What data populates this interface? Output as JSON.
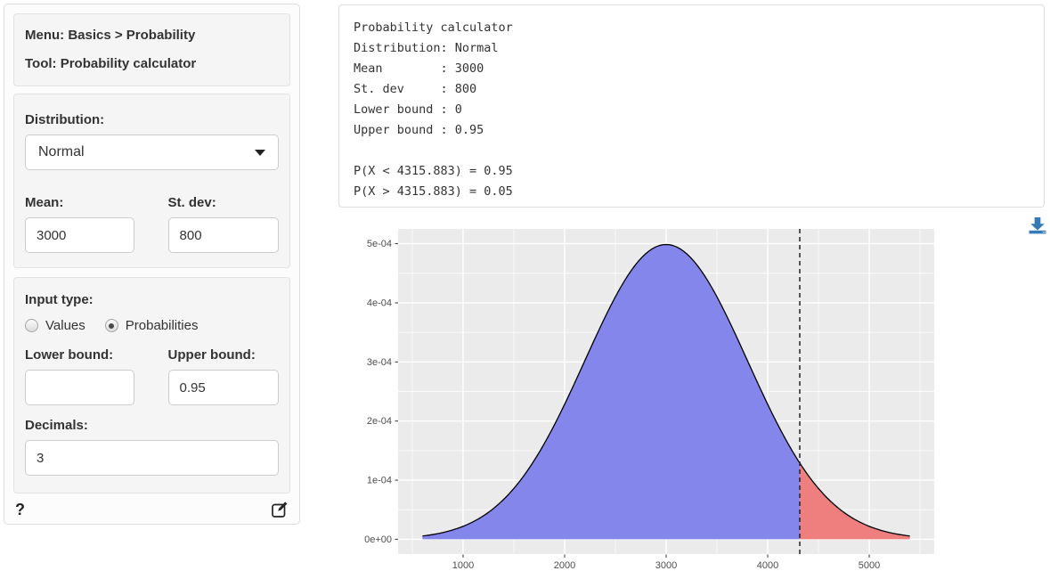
{
  "sidebar": {
    "menu_line": "Menu: Basics > Probability",
    "tool_line": "Tool: Probability calculator",
    "distribution_label": "Distribution:",
    "distribution_value": "Normal",
    "mean_label": "Mean:",
    "mean_value": "3000",
    "stdev_label": "St. dev:",
    "stdev_value": "800",
    "input_type_label": "Input type:",
    "radio_values_label": "Values",
    "radio_probabilities_label": "Probabilities",
    "input_type_selected": "Probabilities",
    "lower_bound_label": "Lower bound:",
    "lower_bound_value": "",
    "upper_bound_label": "Upper bound:",
    "upper_bound_value": "0.95",
    "decimals_label": "Decimals:",
    "decimals_value": "3",
    "help_icon_glyph": "?"
  },
  "output": {
    "text": "Probability calculator\nDistribution: Normal\nMean        : 3000\nSt. dev     : 800\nLower bound : 0\nUpper bound : 0.95\n\nP(X < 4315.883) = 0.95\nP(X > 4315.883) = 0.05"
  },
  "chart_data": {
    "type": "area",
    "distribution": "normal",
    "mean": 3000,
    "sd": 800,
    "cutoff": 4315.883,
    "p_below_cutoff": 0.95,
    "p_above_cutoff": 0.05,
    "curve_range": [
      600,
      5400
    ],
    "xlim": [
      360,
      5640
    ],
    "ylim": [
      -2.5e-05,
      0.000525
    ],
    "x_ticks": [
      1000,
      2000,
      3000,
      4000,
      5000
    ],
    "x_tick_labels": [
      "1000",
      "2000",
      "3000",
      "4000",
      "5000"
    ],
    "x_minor": [
      500,
      1500,
      2500,
      3500,
      4500,
      5500
    ],
    "y_ticks": [
      0,
      0.0001,
      0.0002,
      0.0003,
      0.0004,
      0.0005
    ],
    "y_tick_labels": [
      "0e+00",
      "1e-04",
      "2e-04",
      "3e-04",
      "4e-04",
      "5e-04"
    ],
    "y_minor": [
      5e-05,
      0.00015,
      0.00025,
      0.00035,
      0.00045
    ],
    "regions": [
      {
        "name": "lower",
        "range": [
          600,
          4315.883
        ],
        "fill": "#8486ec"
      },
      {
        "name": "upper",
        "range": [
          4315.883,
          5400
        ],
        "fill": "#ef7f7f"
      }
    ],
    "vline": 4315.883,
    "colors": {
      "panel": "#ebebeb",
      "grid": "#ffffff",
      "curve": "#000000",
      "vline": "#222222",
      "tick_label": "#4d4d4d",
      "tick_mark": "#333333",
      "download_accent": "#337ab7"
    },
    "legend": "none",
    "title": "",
    "xlabel": "",
    "ylabel": ""
  }
}
